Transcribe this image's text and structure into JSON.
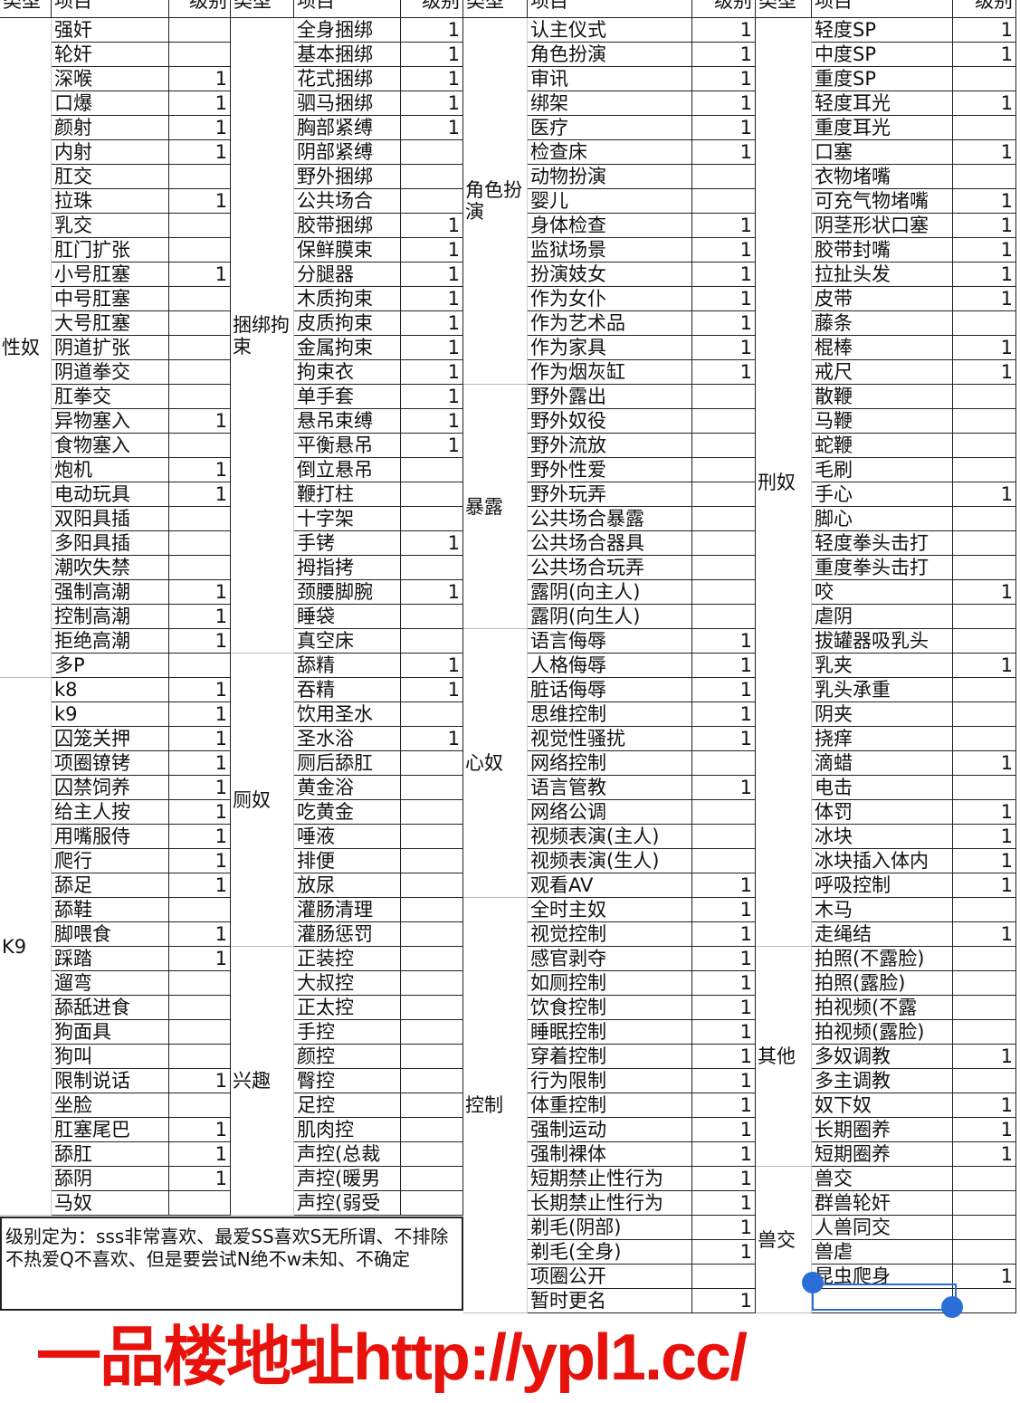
{
  "headers": [
    "类型",
    "项目",
    "级别"
  ],
  "groups": [
    [
      {
        "type": "性奴",
        "items": [
          [
            "强奸",
            ""
          ],
          [
            "轮奸",
            ""
          ],
          [
            "深喉",
            "1"
          ],
          [
            "口爆",
            "1"
          ],
          [
            "颜射",
            "1"
          ],
          [
            "内射",
            "1"
          ],
          [
            "肛交",
            ""
          ],
          [
            "拉珠",
            "1"
          ],
          [
            "乳交",
            ""
          ],
          [
            "肛门扩张",
            ""
          ],
          [
            "小号肛塞",
            "1"
          ],
          [
            "中号肛塞",
            ""
          ],
          [
            "大号肛塞",
            ""
          ],
          [
            "阴道扩张",
            ""
          ],
          [
            "阴道拳交",
            ""
          ],
          [
            "肛拳交",
            ""
          ],
          [
            "异物塞入",
            "1"
          ],
          [
            "食物塞入",
            ""
          ],
          [
            "炮机",
            "1"
          ],
          [
            "电动玩具",
            "1"
          ],
          [
            "双阳具插",
            ""
          ],
          [
            "多阳具插",
            ""
          ],
          [
            "潮吹失禁",
            ""
          ],
          [
            "强制高潮",
            "1"
          ],
          [
            "控制高潮",
            "1"
          ],
          [
            "拒绝高潮",
            "1"
          ],
          [
            "多P",
            ""
          ]
        ]
      },
      {
        "type": "K9",
        "items": [
          [
            "k8",
            "1"
          ],
          [
            "k9",
            "1"
          ],
          [
            "囚笼关押",
            "1"
          ],
          [
            "项圈镣铐",
            "1"
          ],
          [
            "囚禁饲养",
            "1"
          ],
          [
            "给主人按",
            "1"
          ],
          [
            "用嘴服侍",
            "1"
          ],
          [
            "爬行",
            "1"
          ],
          [
            "舔足",
            "1"
          ],
          [
            "舔鞋",
            ""
          ],
          [
            "脚喂食",
            "1"
          ],
          [
            "踩踏",
            "1"
          ],
          [
            "遛弯",
            ""
          ],
          [
            "舔舐进食",
            ""
          ],
          [
            "狗面具",
            ""
          ],
          [
            "狗叫",
            ""
          ],
          [
            "限制说话",
            "1"
          ],
          [
            "坐脸",
            ""
          ],
          [
            "肛塞尾巴",
            "1"
          ],
          [
            "舔肛",
            "1"
          ],
          [
            "舔阴",
            "1"
          ],
          [
            "马奴",
            ""
          ]
        ]
      }
    ],
    [
      {
        "type": "捆绑拘束",
        "items": [
          [
            "全身捆绑",
            "1"
          ],
          [
            "基本捆绑",
            "1"
          ],
          [
            "花式捆绑",
            "1"
          ],
          [
            "驷马捆绑",
            "1"
          ],
          [
            "胸部紧缚",
            "1"
          ],
          [
            "阴部紧缚",
            ""
          ],
          [
            "野外捆绑",
            ""
          ],
          [
            "公共场合",
            ""
          ],
          [
            "胶带捆绑",
            "1"
          ],
          [
            "保鲜膜束",
            "1"
          ],
          [
            "分腿器",
            "1"
          ],
          [
            "木质拘束",
            "1"
          ],
          [
            "皮质拘束",
            "1"
          ],
          [
            "金属拘束",
            "1"
          ],
          [
            "拘束衣",
            "1"
          ],
          [
            "单手套",
            "1"
          ],
          [
            "悬吊束缚",
            "1"
          ],
          [
            "平衡悬吊",
            "1"
          ],
          [
            "倒立悬吊",
            ""
          ],
          [
            "鞭打柱",
            ""
          ],
          [
            "十字架",
            ""
          ],
          [
            "手铐",
            "1"
          ],
          [
            "拇指拷",
            ""
          ],
          [
            "颈腰脚腕",
            "1"
          ],
          [
            "睡袋",
            ""
          ],
          [
            "真空床",
            ""
          ]
        ]
      },
      {
        "type": "厕奴",
        "items": [
          [
            "舔精",
            "1"
          ],
          [
            "吞精",
            "1"
          ],
          [
            "饮用圣水",
            ""
          ],
          [
            "圣水浴",
            "1"
          ],
          [
            "厕后舔肛",
            ""
          ],
          [
            "黄金浴",
            ""
          ],
          [
            "吃黄金",
            ""
          ],
          [
            "唾液",
            ""
          ],
          [
            "排便",
            ""
          ],
          [
            "放尿",
            ""
          ],
          [
            "灌肠清理",
            ""
          ],
          [
            "灌肠惩罚",
            ""
          ]
        ]
      },
      {
        "type": "兴趣",
        "items": [
          [
            "正装控",
            ""
          ],
          [
            "大叔控",
            ""
          ],
          [
            "正太控",
            ""
          ],
          [
            "手控",
            ""
          ],
          [
            "颜控",
            ""
          ],
          [
            "臀控",
            ""
          ],
          [
            "足控",
            ""
          ],
          [
            "肌肉控",
            ""
          ],
          [
            "声控(总裁",
            ""
          ],
          [
            "声控(暖男",
            ""
          ],
          [
            "声控(弱受",
            ""
          ]
        ]
      }
    ],
    [
      {
        "type": "角色扮演",
        "items": [
          [
            "认主仪式",
            "1"
          ],
          [
            "角色扮演",
            "1"
          ],
          [
            "审讯",
            "1"
          ],
          [
            "绑架",
            "1"
          ],
          [
            "医疗",
            "1"
          ],
          [
            "检查床",
            "1"
          ],
          [
            "动物扮演",
            ""
          ],
          [
            "婴儿",
            ""
          ],
          [
            "身体检查",
            "1"
          ],
          [
            "监狱场景",
            "1"
          ],
          [
            "扮演妓女",
            "1"
          ],
          [
            "作为女仆",
            "1"
          ],
          [
            "作为艺术品",
            "1"
          ],
          [
            "作为家具",
            "1"
          ],
          [
            "作为烟灰缸",
            "1"
          ]
        ]
      },
      {
        "type": "暴露",
        "items": [
          [
            "野外露出",
            ""
          ],
          [
            "野外奴役",
            ""
          ],
          [
            "野外流放",
            ""
          ],
          [
            "野外性爱",
            ""
          ],
          [
            "野外玩弄",
            ""
          ],
          [
            "公共场合暴露",
            ""
          ],
          [
            "公共场合器具",
            ""
          ],
          [
            "公共场合玩弄",
            ""
          ],
          [
            "露阴(向主人)",
            ""
          ],
          [
            "露阴(向生人)",
            ""
          ]
        ]
      },
      {
        "type": "心奴",
        "items": [
          [
            "语言侮辱",
            "1"
          ],
          [
            "人格侮辱",
            "1"
          ],
          [
            "脏话侮辱",
            "1"
          ],
          [
            "思维控制",
            "1"
          ],
          [
            "视觉性骚扰",
            "1"
          ],
          [
            "网络控制",
            ""
          ],
          [
            "语言管教",
            "1"
          ],
          [
            "网络公调",
            ""
          ],
          [
            "视频表演(主人)",
            ""
          ],
          [
            "视频表演(生人)",
            ""
          ],
          [
            "观看AV",
            "1"
          ]
        ]
      },
      {
        "type": "控制",
        "items": [
          [
            "全时主奴",
            "1"
          ],
          [
            "视觉控制",
            "1"
          ],
          [
            "感官剥夺",
            "1"
          ],
          [
            "如厕控制",
            "1"
          ],
          [
            "饮食控制",
            "1"
          ],
          [
            "睡眠控制",
            "1"
          ],
          [
            "穿着控制",
            "1"
          ],
          [
            "行为限制",
            "1"
          ],
          [
            "体重控制",
            "1"
          ],
          [
            "强制运动",
            "1"
          ],
          [
            "强制裸体",
            "1"
          ],
          [
            "短期禁止性行为",
            "1"
          ],
          [
            "长期禁止性行为",
            "1"
          ],
          [
            "剃毛(阴部)",
            "1"
          ],
          [
            "剃毛(全身)",
            "1"
          ],
          [
            "项圈公开",
            ""
          ],
          [
            "暂时更名",
            "1"
          ]
        ]
      }
    ],
    [
      {
        "type": "刑奴",
        "items": [
          [
            "轻度SP",
            "1"
          ],
          [
            "中度SP",
            "1"
          ],
          [
            "重度SP",
            ""
          ],
          [
            "轻度耳光",
            "1"
          ],
          [
            "重度耳光",
            ""
          ],
          [
            "口塞",
            "1"
          ],
          [
            "衣物堵嘴",
            ""
          ],
          [
            "可充气物堵嘴",
            "1"
          ],
          [
            "阴茎形状口塞",
            "1"
          ],
          [
            "胶带封嘴",
            "1"
          ],
          [
            "拉扯头发",
            "1"
          ],
          [
            "皮带",
            "1"
          ],
          [
            "藤条",
            ""
          ],
          [
            "棍棒",
            "1"
          ],
          [
            "戒尺",
            "1"
          ],
          [
            "散鞭",
            ""
          ],
          [
            "马鞭",
            ""
          ],
          [
            "蛇鞭",
            ""
          ],
          [
            "毛刷",
            ""
          ],
          [
            "手心",
            "1"
          ],
          [
            "脚心",
            ""
          ],
          [
            "轻度拳头击打",
            ""
          ],
          [
            "重度拳头击打",
            ""
          ],
          [
            "咬",
            "1"
          ],
          [
            "虐阴",
            ""
          ],
          [
            "拔罐器吸乳头",
            ""
          ],
          [
            "乳夹",
            "1"
          ],
          [
            "乳头承重",
            ""
          ],
          [
            "阴夹",
            ""
          ],
          [
            "挠痒",
            ""
          ],
          [
            "滴蜡",
            "1"
          ],
          [
            "电击",
            ""
          ],
          [
            "体罚",
            "1"
          ],
          [
            "冰块",
            "1"
          ],
          [
            "冰块插入体内",
            "1"
          ],
          [
            "呼吸控制",
            "1"
          ],
          [
            "木马",
            ""
          ],
          [
            "走绳结",
            "1"
          ]
        ]
      },
      {
        "type": "其他",
        "items": [
          [
            "拍照(不露脸)",
            ""
          ],
          [
            "拍照(露脸)",
            ""
          ],
          [
            "拍视频(不露",
            ""
          ],
          [
            "拍视频(露脸)",
            ""
          ],
          [
            "多奴调教",
            "1"
          ],
          [
            "多主调教",
            ""
          ],
          [
            "奴下奴",
            "1"
          ],
          [
            "长期圈养",
            "1"
          ],
          [
            "短期圈养",
            "1"
          ]
        ]
      },
      {
        "type": "兽交",
        "items": [
          [
            "兽交",
            ""
          ],
          [
            "群兽轮奸",
            ""
          ],
          [
            "人兽同交",
            ""
          ],
          [
            "兽虐",
            ""
          ],
          [
            "昆虫爬身",
            "1"
          ],
          [
            "",
            ""
          ]
        ]
      }
    ]
  ],
  "note": "级别定为：sss非常喜欢、最爱SS喜欢S无所谓、不排除不热爱Q不喜欢、但是要尝试N绝不w未知、不确定",
  "watermark": "一品楼地址http://ypl1.cc/"
}
